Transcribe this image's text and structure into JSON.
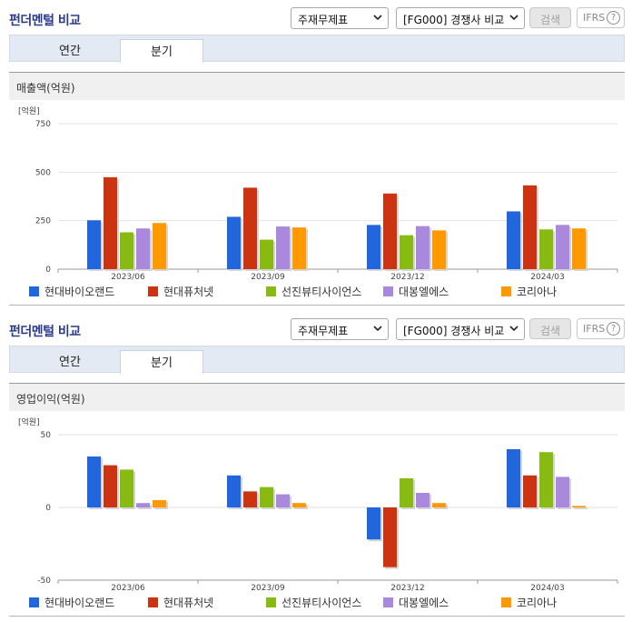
{
  "colors": {
    "현대바이오랜드": "#2266dd",
    "현대퓨처넷": "#cc3311",
    "선진뷰티사이언스": "#88bb11",
    "대봉엘에스": "#aa88dd",
    "코리아나": "#ff9900"
  },
  "panels": [
    {
      "title": "펀더멘털 비교",
      "statement_select": "주재무제표",
      "compare_select": "[FG000] 경쟁사 비교",
      "search_label": "검색",
      "ifrs_label": "IFRS",
      "help_label": "?",
      "tabs": [
        "연간",
        "분기"
      ],
      "active_tab": "분기",
      "metric_label": "매출액(억원)"
    },
    {
      "title": "펀더멘털 비교",
      "statement_select": "주재무제표",
      "compare_select": "[FG000] 경쟁사 비교",
      "search_label": "검색",
      "ifrs_label": "IFRS",
      "help_label": "?",
      "tabs": [
        "연간",
        "분기"
      ],
      "active_tab": "분기",
      "metric_label": "영업이익(억원)"
    }
  ],
  "chart_data": [
    {
      "type": "bar",
      "unit_label": "[억원]",
      "categories": [
        "2023/06",
        "2023/09",
        "2023/12",
        "2024/03"
      ],
      "ylim": [
        0,
        750
      ],
      "yticks": [
        0,
        250,
        500,
        750
      ],
      "grid": true,
      "legend_position": "bottom",
      "series": [
        {
          "name": "현대바이오랜드",
          "values": [
            252,
            270,
            228,
            298
          ]
        },
        {
          "name": "현대퓨처넷",
          "values": [
            474,
            420,
            390,
            432
          ]
        },
        {
          "name": "선진뷰티사이언스",
          "values": [
            190,
            152,
            175,
            205
          ]
        },
        {
          "name": "대봉엘에스",
          "values": [
            210,
            220,
            222,
            228
          ]
        },
        {
          "name": "코리아나",
          "values": [
            238,
            215,
            200,
            210
          ]
        }
      ]
    },
    {
      "type": "bar",
      "unit_label": "[억원]",
      "categories": [
        "2023/06",
        "2023/09",
        "2023/12",
        "2024/03"
      ],
      "ylim": [
        -50,
        50
      ],
      "yticks": [
        -50,
        0,
        50
      ],
      "grid": true,
      "legend_position": "bottom",
      "series": [
        {
          "name": "현대바이오랜드",
          "values": [
            35,
            22,
            -22,
            40
          ]
        },
        {
          "name": "현대퓨처넷",
          "values": [
            29,
            11,
            -41,
            22
          ]
        },
        {
          "name": "선진뷰티사이언스",
          "values": [
            26,
            14,
            20,
            38
          ]
        },
        {
          "name": "대봉엘에스",
          "values": [
            3,
            9,
            10,
            21
          ]
        },
        {
          "name": "코리아나",
          "values": [
            5,
            3,
            3,
            1
          ]
        }
      ]
    }
  ]
}
